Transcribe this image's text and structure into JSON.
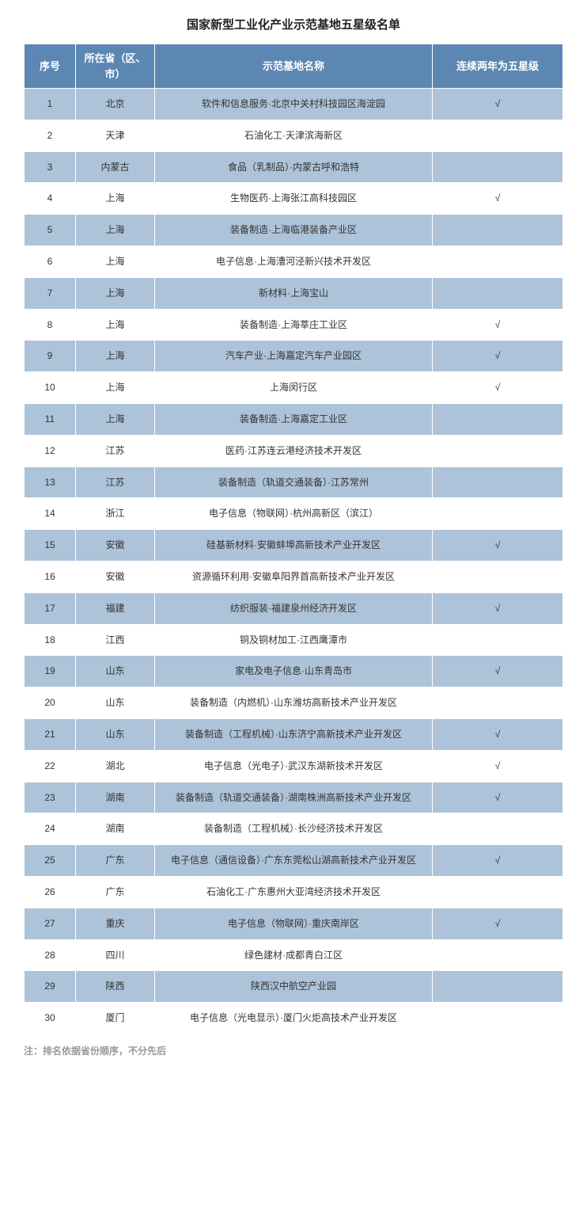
{
  "title": "国家新型工业化产业示范基地五星级名单",
  "columns": [
    "序号",
    "所在省（区、市）",
    "示范基地名称",
    "连续两年为五星级"
  ],
  "check_mark": "√",
  "note": "注：排名依据省份顺序，不分先后",
  "header_bg": "#5b87b2",
  "odd_row_bg": "#adc3d9",
  "even_row_bg": "#ffffff",
  "rows": [
    {
      "seq": "1",
      "prov": "北京",
      "name": "软件和信息服务·北京中关村科技园区海淀园",
      "flag": true
    },
    {
      "seq": "2",
      "prov": "天津",
      "name": "石油化工·天津滨海新区",
      "flag": false
    },
    {
      "seq": "3",
      "prov": "内蒙古",
      "name": "食品（乳制品）·内蒙古呼和浩特",
      "flag": false
    },
    {
      "seq": "4",
      "prov": "上海",
      "name": "生物医药·上海张江高科技园区",
      "flag": true
    },
    {
      "seq": "5",
      "prov": "上海",
      "name": "装备制造·上海临港装备产业区",
      "flag": false
    },
    {
      "seq": "6",
      "prov": "上海",
      "name": "电子信息·上海漕河泾新兴技术开发区",
      "flag": false
    },
    {
      "seq": "7",
      "prov": "上海",
      "name": "新材料·上海宝山",
      "flag": false
    },
    {
      "seq": "8",
      "prov": "上海",
      "name": "装备制造·上海莘庄工业区",
      "flag": true
    },
    {
      "seq": "9",
      "prov": "上海",
      "name": "汽车产业·上海嘉定汽车产业园区",
      "flag": true
    },
    {
      "seq": "10",
      "prov": "上海",
      "name": "上海闵行区",
      "flag": true
    },
    {
      "seq": "11",
      "prov": "上海",
      "name": "装备制造·上海嘉定工业区",
      "flag": false
    },
    {
      "seq": "12",
      "prov": "江苏",
      "name": "医药·江苏连云港经济技术开发区",
      "flag": false
    },
    {
      "seq": "13",
      "prov": "江苏",
      "name": "装备制造（轨道交通装备）·江苏常州",
      "flag": false
    },
    {
      "seq": "14",
      "prov": "浙江",
      "name": "电子信息（物联网）·杭州高新区（滨江）",
      "flag": false
    },
    {
      "seq": "15",
      "prov": "安徽",
      "name": "硅基新材料·安徽蚌埠高新技术产业开发区",
      "flag": true
    },
    {
      "seq": "16",
      "prov": "安徽",
      "name": "资源循环利用·安徽阜阳界首高新技术产业开发区",
      "flag": false
    },
    {
      "seq": "17",
      "prov": "福建",
      "name": "纺织服装·福建泉州经济开发区",
      "flag": true
    },
    {
      "seq": "18",
      "prov": "江西",
      "name": "铜及铜材加工·江西鹰潭市",
      "flag": false
    },
    {
      "seq": "19",
      "prov": "山东",
      "name": "家电及电子信息·山东青岛市",
      "flag": true
    },
    {
      "seq": "20",
      "prov": "山东",
      "name": "装备制造（内燃机）·山东潍坊高新技术产业开发区",
      "flag": false
    },
    {
      "seq": "21",
      "prov": "山东",
      "name": "装备制造（工程机械）·山东济宁高新技术产业开发区",
      "flag": true
    },
    {
      "seq": "22",
      "prov": "湖北",
      "name": "电子信息（光电子）·武汉东湖新技术开发区",
      "flag": true
    },
    {
      "seq": "23",
      "prov": "湖南",
      "name": "装备制造（轨道交通装备）·湖南株洲高新技术产业开发区",
      "flag": true
    },
    {
      "seq": "24",
      "prov": "湖南",
      "name": "装备制造（工程机械）·长沙经济技术开发区",
      "flag": false
    },
    {
      "seq": "25",
      "prov": "广东",
      "name": "电子信息（通信设备）·广东东莞松山湖高新技术产业开发区",
      "flag": true
    },
    {
      "seq": "26",
      "prov": "广东",
      "name": "石油化工·广东惠州大亚湾经济技术开发区",
      "flag": false
    },
    {
      "seq": "27",
      "prov": "重庆",
      "name": "电子信息（物联网）·重庆南岸区",
      "flag": true
    },
    {
      "seq": "28",
      "prov": "四川",
      "name": "绿色建材·成都青白江区",
      "flag": false
    },
    {
      "seq": "29",
      "prov": "陕西",
      "name": "陕西汉中航空产业园",
      "flag": false
    },
    {
      "seq": "30",
      "prov": "厦门",
      "name": "电子信息（光电显示）·厦门火炬高技术产业开发区",
      "flag": false
    }
  ]
}
